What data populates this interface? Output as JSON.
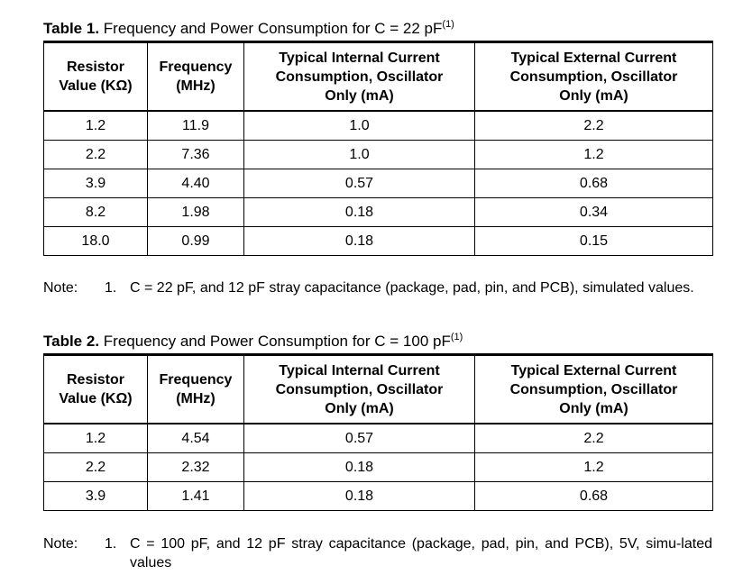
{
  "table1": {
    "label": "Table 1.",
    "title": "Frequency and Power Consumption for C = 22 pF",
    "note_ref": "(1)",
    "headers": [
      [
        "Resistor",
        "Value (KΩ)"
      ],
      [
        "Frequency",
        "(MHz)"
      ],
      [
        "Typical Internal Current",
        "Consumption, Oscillator",
        "Only (mA)"
      ],
      [
        "Typical External Current",
        "Consumption, Oscillator",
        "Only (mA)"
      ]
    ],
    "rows": [
      [
        "1.2",
        "11.9",
        "1.0",
        "2.2"
      ],
      [
        "2.2",
        "7.36",
        "1.0",
        "1.2"
      ],
      [
        "3.9",
        "4.40",
        "0.57",
        "0.68"
      ],
      [
        "8.2",
        "1.98",
        "0.18",
        "0.34"
      ],
      [
        "18.0",
        "0.99",
        "0.18",
        "0.15"
      ]
    ],
    "note": {
      "label": "Note:",
      "number": "1.",
      "text": "C = 22 pF, and 12 pF stray capacitance (package, pad, pin, and PCB), simulated values."
    }
  },
  "table2": {
    "label": "Table 2.",
    "title": "Frequency and Power Consumption for C = 100 pF",
    "note_ref": "(1)",
    "headers": [
      [
        "Resistor",
        "Value (KΩ)"
      ],
      [
        "Frequency",
        "(MHz)"
      ],
      [
        "Typical Internal Current",
        "Consumption, Oscillator",
        "Only (mA)"
      ],
      [
        "Typical External Current",
        "Consumption, Oscillator",
        "Only (mA)"
      ]
    ],
    "rows": [
      [
        "1.2",
        "4.54",
        "0.57",
        "2.2"
      ],
      [
        "2.2",
        "2.32",
        "0.18",
        "1.2"
      ],
      [
        "3.9",
        "1.41",
        "0.18",
        "0.68"
      ]
    ],
    "note": {
      "label": "Note:",
      "number": "1.",
      "text": "C = 100 pF, and 12 pF stray capacitance (package, pad, pin, and PCB), 5V, simu-lated values"
    }
  }
}
